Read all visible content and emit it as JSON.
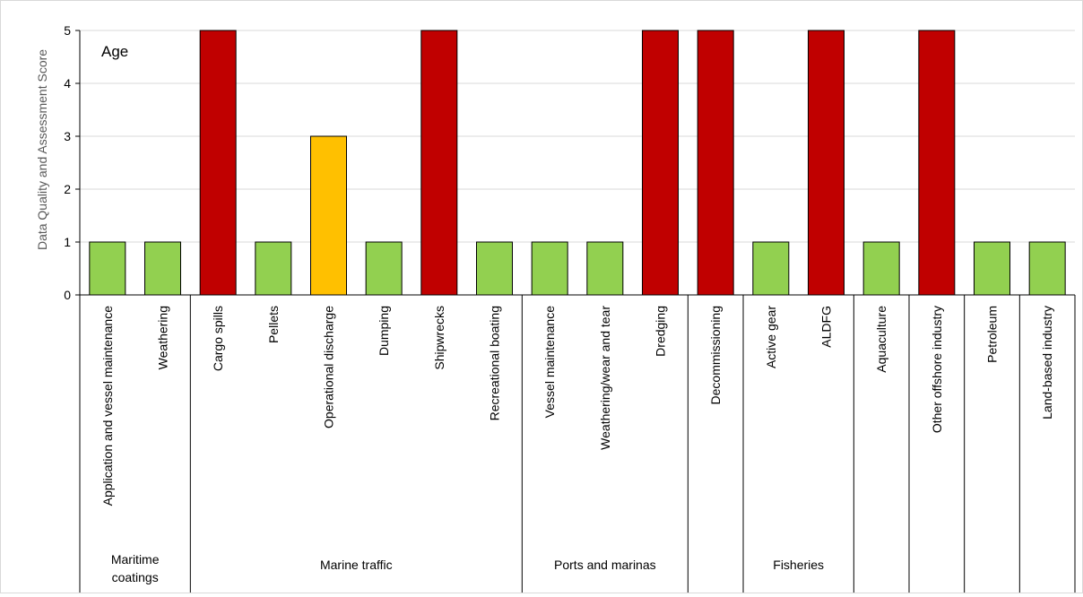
{
  "chart_data": {
    "type": "bar",
    "annotation": "Age",
    "ylabel": "Data Quality and Assessment Score",
    "ylim": [
      0,
      5
    ],
    "yticks": [
      "0",
      "1",
      "2",
      "3",
      "4",
      "5"
    ],
    "grid": true,
    "categories": [
      "Application and vessel maintenance",
      "Weathering",
      "Cargo spills",
      "Pellets",
      "Operational discharge",
      "Dumping",
      "Shipwrecks",
      "Recreational boating",
      "Vessel maintenance",
      "Weathering/wear and tear",
      "Dredging",
      "Decommissioning",
      "Active gear",
      "ALDFG",
      "Aquaculture",
      "Other offshore industry",
      "Petroleum",
      "Land-based industry"
    ],
    "values": [
      1,
      1,
      5,
      1,
      3,
      1,
      5,
      1,
      1,
      1,
      5,
      5,
      1,
      5,
      1,
      5,
      1,
      1
    ],
    "colors": {
      "1": "#92d050",
      "3": "#ffc000",
      "5": "#c00000"
    },
    "groups": [
      {
        "label_lines": [
          "Maritime",
          "coatings"
        ],
        "start": 0,
        "end": 1
      },
      {
        "label_lines": [
          "Marine traffic"
        ],
        "start": 2,
        "end": 7
      },
      {
        "label_lines": [
          "Ports and marinas"
        ],
        "start": 8,
        "end": 10
      },
      {
        "label_lines": [
          ""
        ],
        "start": 11,
        "end": 11
      },
      {
        "label_lines": [
          "Fisheries"
        ],
        "start": 12,
        "end": 13
      },
      {
        "label_lines": [
          ""
        ],
        "start": 14,
        "end": 14
      },
      {
        "label_lines": [
          ""
        ],
        "start": 15,
        "end": 15
      },
      {
        "label_lines": [
          ""
        ],
        "start": 16,
        "end": 16
      },
      {
        "label_lines": [
          ""
        ],
        "start": 17,
        "end": 17
      }
    ]
  }
}
